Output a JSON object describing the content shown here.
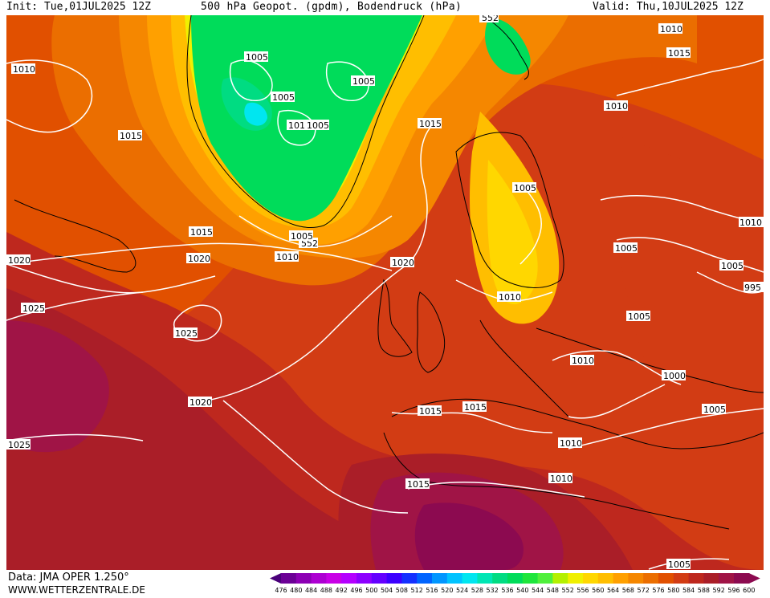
{
  "header": {
    "init": "Init: Tue,01JUL2025 12Z",
    "title": "500 hPa Geopot. (gpdm), Bodendruck (hPa)",
    "valid": "Valid: Thu,10JUL2025 12Z"
  },
  "footer": {
    "source": "Data: JMA OPER 1.250°",
    "website": "WWW.WETTERZENTRALE.DE"
  },
  "legend": {
    "levels": [
      "476",
      "480",
      "484",
      "488",
      "492",
      "496",
      "500",
      "504",
      "508",
      "512",
      "516",
      "520",
      "524",
      "528",
      "532",
      "536",
      "540",
      "544",
      "548",
      "552",
      "556",
      "560",
      "564",
      "568",
      "572",
      "576",
      "580",
      "584",
      "588",
      "592",
      "596",
      "600"
    ],
    "colors": [
      "#4a007a",
      "#6b0096",
      "#8c00b4",
      "#ad00d2",
      "#c800e6",
      "#b400ff",
      "#8c00ff",
      "#6400ff",
      "#3c00ff",
      "#1430ff",
      "#0064ff",
      "#0096ff",
      "#00c3ff",
      "#00e6f0",
      "#00e6b4",
      "#00dc82",
      "#00dc5a",
      "#1ee63c",
      "#50f03c",
      "#b4f000",
      "#f0f000",
      "#ffd700",
      "#ffbe00",
      "#ffa000",
      "#f58700",
      "#eb6e00",
      "#e15000",
      "#d23c14",
      "#be281e",
      "#aa1e28",
      "#a01446",
      "#8c0a50"
    ]
  },
  "map": {
    "height_labels": [
      "552",
      "552"
    ],
    "pressure_labels": [
      "1010",
      "1005",
      "1005",
      "1005",
      "1010",
      "1005",
      "1015",
      "1015",
      "1020",
      "1015",
      "1020",
      "1010",
      "1005",
      "552",
      "1020",
      "1025",
      "1025",
      "1020",
      "1015",
      "1015",
      "1010",
      "1015",
      "1010",
      "1005",
      "1010",
      "1005",
      "1010",
      "1005",
      "1010",
      "1000",
      "1005",
      "1010",
      "1015",
      "1010",
      "1005",
      "1005",
      "995",
      "1025",
      "1015",
      "1010"
    ]
  }
}
